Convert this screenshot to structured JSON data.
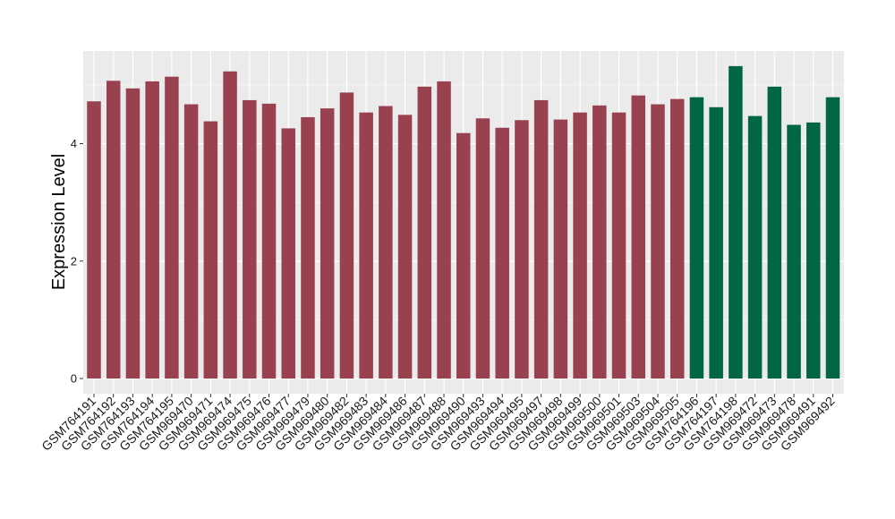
{
  "chart_data": {
    "type": "bar",
    "title": "",
    "xlabel": "",
    "ylabel": "Expression Level",
    "ylim": [
      0,
      5.5
    ],
    "yticks": [
      0,
      2,
      4
    ],
    "grid": true,
    "legend": "none",
    "colors": {
      "group_1": "#9a4150",
      "group_2": "#006644",
      "panel": "#ebebeb",
      "grid": "#ffffff"
    },
    "categories": [
      "GSM764191",
      "GSM764192",
      "GSM764193",
      "GSM764194",
      "GSM764195",
      "GSM969470",
      "GSM969471",
      "GSM969474",
      "GSM969475",
      "GSM969476",
      "GSM969477",
      "GSM969479",
      "GSM969480",
      "GSM969482",
      "GSM969483",
      "GSM969484",
      "GSM969486",
      "GSM969487",
      "GSM969488",
      "GSM969490",
      "GSM969493",
      "GSM969494",
      "GSM969495",
      "GSM969497",
      "GSM969498",
      "GSM969499",
      "GSM969500",
      "GSM969501",
      "GSM969503",
      "GSM969504",
      "GSM969505",
      "GSM764196",
      "GSM764197",
      "GSM764198",
      "GSM969472",
      "GSM969473",
      "GSM969478",
      "GSM969491",
      "GSM969492"
    ],
    "values": [
      4.72,
      5.07,
      4.94,
      5.06,
      5.14,
      4.67,
      4.38,
      5.23,
      4.74,
      4.68,
      4.26,
      4.45,
      4.6,
      4.87,
      4.53,
      4.64,
      4.49,
      4.97,
      5.06,
      4.18,
      4.43,
      4.27,
      4.4,
      4.74,
      4.41,
      4.53,
      4.65,
      4.53,
      4.82,
      4.67,
      4.76,
      4.79,
      4.62,
      5.32,
      4.47,
      4.97,
      4.32,
      4.36,
      4.79
    ],
    "groups": [
      1,
      1,
      1,
      1,
      1,
      1,
      1,
      1,
      1,
      1,
      1,
      1,
      1,
      1,
      1,
      1,
      1,
      1,
      1,
      1,
      1,
      1,
      1,
      1,
      1,
      1,
      1,
      1,
      1,
      1,
      1,
      2,
      2,
      2,
      2,
      2,
      2,
      2,
      2
    ]
  }
}
